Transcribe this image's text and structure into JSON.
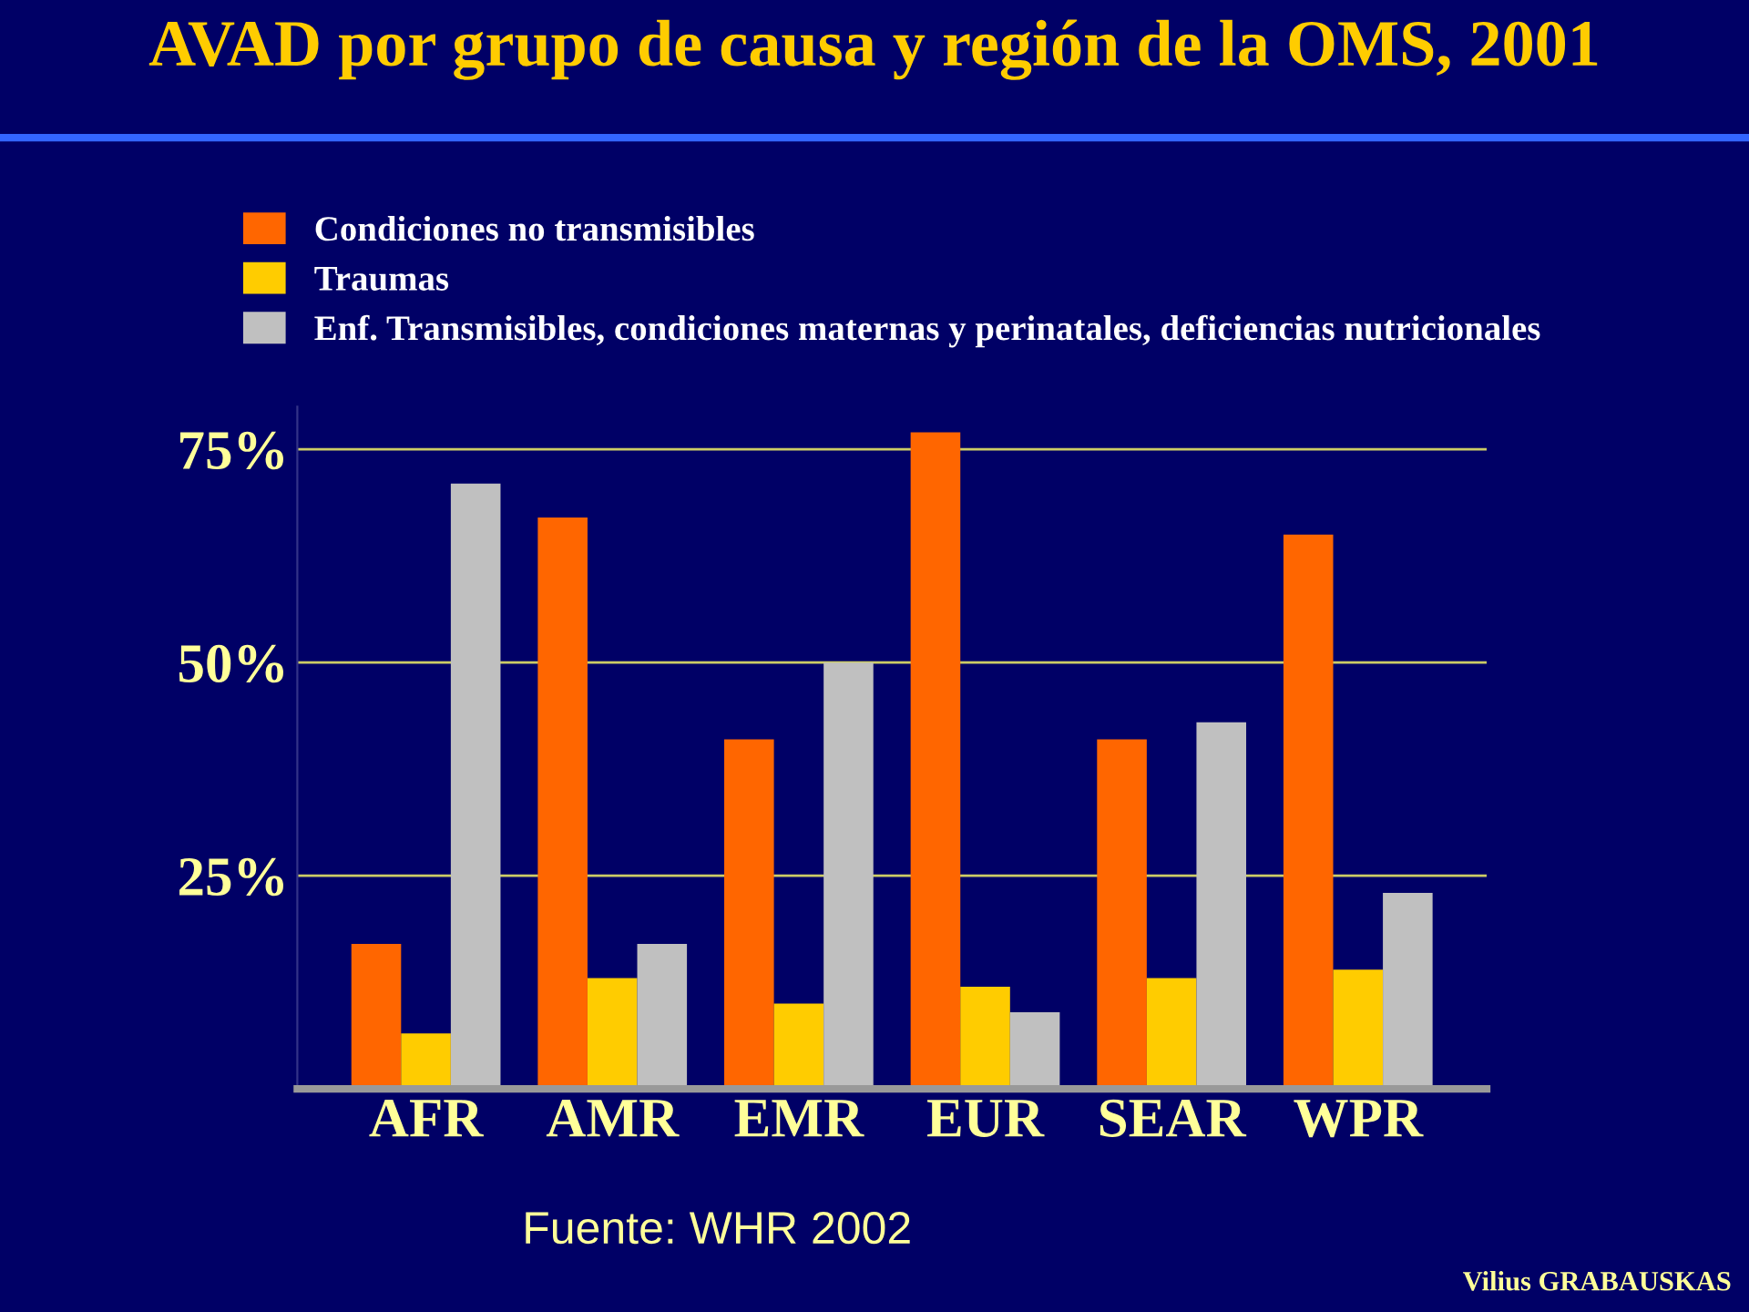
{
  "chart_data": {
    "type": "bar",
    "title": "AVAD por grupo de causa y región de la OMS, 2001",
    "categories": [
      "AFR",
      "AMR",
      "EMR",
      "EUR",
      "SEAR",
      "WPR"
    ],
    "series": [
      {
        "name": "Condiciones no transmisibles",
        "color": "#ff6600",
        "values": [
          17,
          67,
          41,
          77,
          41,
          65
        ]
      },
      {
        "name": "Traumas",
        "color": "#ffcc00",
        "values": [
          6.5,
          13,
          10,
          12,
          13,
          14
        ]
      },
      {
        "name": "Enf. Transmisibles, condiciones maternas y perinatales, deficiencias nutricionales",
        "color": "#c0c0c0",
        "values": [
          71,
          17,
          50,
          9,
          43,
          23
        ]
      }
    ],
    "ylim": [
      0,
      80
    ],
    "yticks": [
      {
        "value": 25,
        "label": "25%"
      },
      {
        "value": 50,
        "label": "50%"
      },
      {
        "value": 75,
        "label": "75%"
      }
    ],
    "grid": "y",
    "legend": "top",
    "annotations": [
      "Fuente: WHR 2002",
      "Vilius GRABAUSKAS"
    ]
  }
}
